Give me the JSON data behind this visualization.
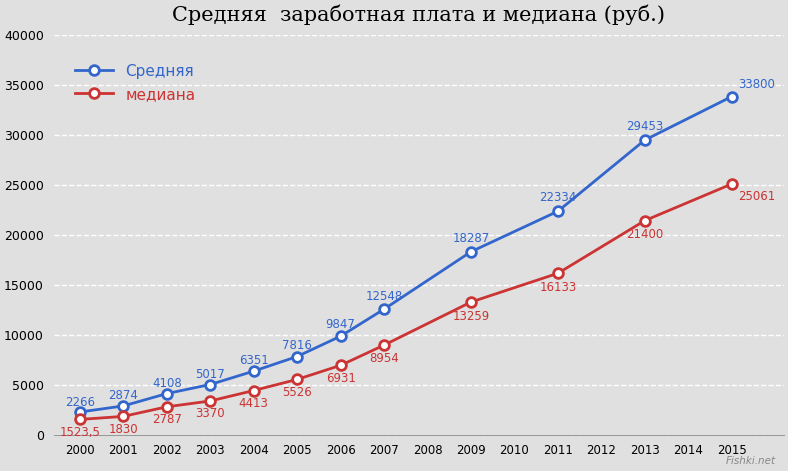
{
  "title": "Средняя  заработная плата и медиана (руб.)",
  "plot_years": [
    2000,
    2001,
    2002,
    2003,
    2004,
    2005,
    2006,
    2007,
    2009,
    2011,
    2013,
    2015
  ],
  "all_years": [
    2000,
    2001,
    2002,
    2003,
    2004,
    2005,
    2006,
    2007,
    2008,
    2009,
    2010,
    2011,
    2012,
    2013,
    2014,
    2015
  ],
  "avg_vals": [
    2266,
    2874,
    4108,
    5017,
    6351,
    7816,
    9847,
    12548,
    18287,
    22334,
    29453,
    33800
  ],
  "med_vals": [
    1523.5,
    1830,
    2787,
    3370,
    4413,
    5526,
    6931,
    8954,
    13259,
    16133,
    21400,
    25061
  ],
  "avg_label_texts": [
    "2266",
    "2874",
    "4108",
    "5017",
    "6351",
    "7816",
    "9847",
    "12548",
    "18287",
    "22334",
    "29453",
    "33800"
  ],
  "med_label_texts": [
    "1523,5",
    "1830",
    "2787",
    "3370",
    "4413",
    "5526",
    "6931",
    "8954",
    "13259",
    "16133",
    "21400",
    "25061"
  ],
  "avg_color": "#3366CC",
  "med_color": "#CC3333",
  "bg_color": "#E0E0E0",
  "grid_color": "#FFFFFF",
  "legend_avg": "Средняя",
  "legend_med": "медиана",
  "ylim": [
    0,
    40000
  ],
  "yticks": [
    0,
    5000,
    10000,
    15000,
    20000,
    25000,
    30000,
    35000,
    40000
  ]
}
